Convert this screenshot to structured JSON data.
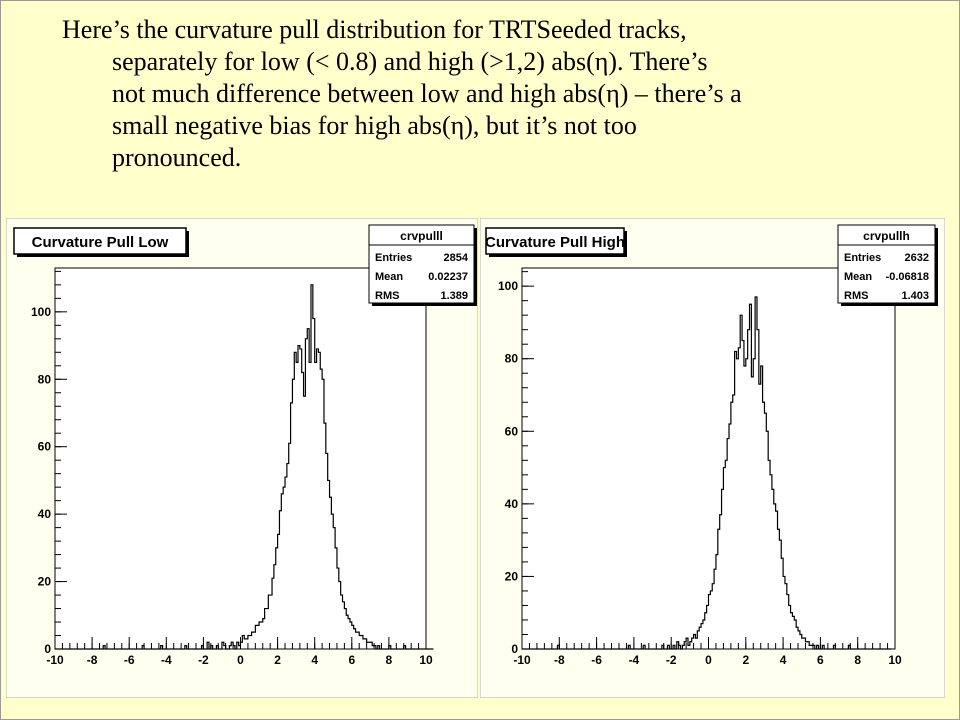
{
  "slide": {
    "lines": [
      "Here’s the curvature pull distribution for TRTSeeded tracks,",
      "separately for low (< 0.8) and high (>1,2) abs(",
      "). There’s",
      "not much difference between low and high abs(",
      ") – there’s a",
      "small negative bias for high abs(",
      "), but it’s not too",
      "pronounced."
    ],
    "eta": "η"
  },
  "colors": {
    "background": "#ffffcc",
    "plot_bg": "#ffffff",
    "histogram": "#000000"
  },
  "chart_data": [
    {
      "type": "bar",
      "title": "Curvature Pull Low",
      "stats": {
        "name": "crvpulll",
        "rows": [
          [
            "Entries",
            "2854"
          ],
          [
            "Mean",
            "0.02237"
          ],
          [
            "RMS",
            "1.389"
          ]
        ]
      },
      "xlim": [
        -10,
        10
      ],
      "ylim": [
        0,
        113
      ],
      "xticks": [
        "-10",
        "-8",
        "-6",
        "-4",
        "-2",
        "0",
        "2",
        "4",
        "6",
        "8",
        "10"
      ],
      "yticks": [
        "0",
        "20",
        "40",
        "60",
        "80",
        "100"
      ],
      "bin_width": 0.1,
      "x_start": -10,
      "values": [
        0,
        0,
        0,
        0,
        0,
        0,
        0,
        0,
        0,
        0,
        0,
        0,
        0,
        0,
        0,
        0,
        0,
        0,
        0,
        0,
        0,
        0,
        0,
        0,
        0,
        0,
        1,
        0,
        0,
        0,
        0,
        0,
        0,
        0,
        0,
        0,
        0,
        0,
        0,
        0,
        0,
        0,
        0,
        0,
        0,
        0,
        0,
        1,
        0,
        0,
        0,
        0,
        0,
        0,
        0,
        0,
        0,
        1,
        0,
        0,
        0,
        0,
        0,
        0,
        0,
        0,
        0,
        0,
        0,
        0,
        1,
        0,
        0,
        0,
        0,
        0,
        0,
        0,
        0,
        1,
        0,
        0,
        2,
        0,
        1,
        0,
        0,
        1,
        0,
        0,
        2,
        1,
        0,
        0,
        1,
        2,
        1,
        0,
        2,
        1,
        2,
        4,
        3,
        3,
        4,
        4,
        5,
        5,
        7,
        7,
        8,
        8,
        9,
        12,
        12,
        16,
        16,
        21,
        25,
        30,
        34,
        41,
        46,
        48,
        51,
        55,
        61,
        73,
        80,
        88,
        85,
        90,
        89,
        82,
        75,
        92,
        95,
        85,
        108,
        98,
        85,
        89,
        88,
        83,
        80,
        67,
        58,
        50,
        45,
        40,
        36,
        30,
        24,
        20,
        16,
        14,
        12,
        10,
        9,
        8,
        7,
        6,
        5,
        5,
        4,
        4,
        3,
        3,
        2,
        2,
        2,
        1,
        1,
        0,
        1,
        0,
        0,
        0,
        0,
        0,
        1,
        0,
        0,
        0,
        0,
        0,
        0,
        0,
        1,
        0,
        0,
        0,
        0,
        0,
        0,
        0,
        0,
        0,
        0,
        0,
        0,
        0,
        0,
        0
      ]
    },
    {
      "type": "bar",
      "title": "Curvature Pull High",
      "stats": {
        "name": "crvpullh",
        "rows": [
          [
            "Entries",
            "2632"
          ],
          [
            "Mean",
            "-0.06818"
          ],
          [
            "RMS",
            "1.403"
          ]
        ]
      },
      "xlim": [
        -10,
        10
      ],
      "ylim": [
        0,
        105
      ],
      "xticks": [
        "-10",
        "-8",
        "-6",
        "-4",
        "-2",
        "0",
        "2",
        "4",
        "6",
        "8",
        "10"
      ],
      "yticks": [
        "0",
        "20",
        "40",
        "60",
        "80",
        "100"
      ],
      "bin_width": 0.1,
      "x_start": -10,
      "values": [
        0,
        0,
        0,
        0,
        0,
        0,
        0,
        0,
        0,
        0,
        0,
        0,
        0,
        0,
        0,
        0,
        0,
        0,
        0,
        1,
        0,
        0,
        0,
        0,
        0,
        0,
        0,
        0,
        0,
        0,
        0,
        0,
        0,
        0,
        0,
        0,
        0,
        0,
        0,
        0,
        0,
        0,
        0,
        0,
        0,
        0,
        0,
        0,
        0,
        0,
        0,
        0,
        0,
        0,
        0,
        0,
        0,
        1,
        0,
        0,
        0,
        0,
        0,
        0,
        0,
        1,
        0,
        0,
        0,
        0,
        0,
        0,
        0,
        0,
        0,
        1,
        0,
        0,
        1,
        0,
        0,
        1,
        0,
        2,
        1,
        0,
        1,
        2,
        3,
        1,
        2,
        3,
        4,
        3,
        5,
        6,
        7,
        8,
        10,
        12,
        15,
        16,
        18,
        22,
        26,
        33,
        37,
        44,
        50,
        52,
        58,
        62,
        68,
        70,
        82,
        80,
        83,
        92,
        85,
        78,
        80,
        88,
        95,
        75,
        80,
        97,
        88,
        73,
        78,
        68,
        65,
        60,
        52,
        48,
        44,
        40,
        38,
        33,
        30,
        25,
        20,
        18,
        15,
        12,
        10,
        9,
        8,
        6,
        5,
        4,
        3,
        3,
        2,
        2,
        1,
        1,
        1,
        0,
        1,
        0,
        0,
        1,
        0,
        0,
        0,
        0,
        0,
        1,
        0,
        0,
        0,
        0,
        0,
        0,
        0,
        1,
        0,
        0,
        0,
        0,
        0,
        0,
        0,
        0,
        0,
        0,
        0,
        0,
        0,
        0,
        0,
        0,
        0,
        0,
        0,
        0,
        0,
        0
      ]
    }
  ]
}
